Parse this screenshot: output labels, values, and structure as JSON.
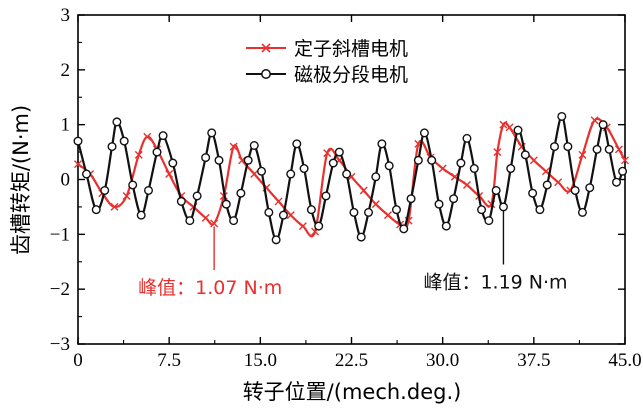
{
  "chart_data": {
    "type": "line",
    "xlabel": "转子位置/(mech.deg.)",
    "ylabel": "齿槽转矩/(N·m)",
    "xlim": [
      0,
      45
    ],
    "ylim": [
      -3,
      3
    ],
    "x_ticks": [
      "0",
      "7.5",
      "15.0",
      "22.5",
      "30.0",
      "37.5",
      "45.0"
    ],
    "y_ticks": [
      "3",
      "2",
      "1",
      "0",
      "−1",
      "−2",
      "−3"
    ],
    "legend_position": "top-center",
    "series": [
      {
        "name": "定子斜槽电机",
        "color": "#e8312f",
        "marker": "x",
        "points": [
          [
            0.0,
            0.28
          ],
          [
            1.0,
            0.1
          ],
          [
            2.0,
            -0.25
          ],
          [
            3.0,
            -0.5
          ],
          [
            4.0,
            -0.3
          ],
          [
            5.0,
            0.45
          ],
          [
            5.7,
            0.78
          ],
          [
            6.5,
            0.55
          ],
          [
            7.5,
            0.1
          ],
          [
            8.5,
            -0.3
          ],
          [
            9.5,
            -0.5
          ],
          [
            10.5,
            -0.7
          ],
          [
            11.2,
            -0.8
          ],
          [
            12.0,
            -0.3
          ],
          [
            12.8,
            0.6
          ],
          [
            13.5,
            0.35
          ],
          [
            14.5,
            0.1
          ],
          [
            15.5,
            -0.15
          ],
          [
            16.5,
            -0.4
          ],
          [
            17.5,
            -0.65
          ],
          [
            18.5,
            -0.85
          ],
          [
            19.5,
            -0.95
          ],
          [
            20.5,
            0.48
          ],
          [
            21.5,
            0.35
          ],
          [
            22.5,
            0.05
          ],
          [
            23.5,
            -0.2
          ],
          [
            24.5,
            -0.45
          ],
          [
            25.5,
            -0.65
          ],
          [
            26.5,
            -0.82
          ],
          [
            27.2,
            -0.75
          ],
          [
            28.0,
            0.65
          ],
          [
            29.0,
            0.4
          ],
          [
            30.0,
            0.2
          ],
          [
            31.0,
            0.05
          ],
          [
            32.0,
            -0.1
          ],
          [
            33.0,
            -0.3
          ],
          [
            34.0,
            -0.45
          ],
          [
            34.5,
            0.5
          ],
          [
            35.0,
            1.0
          ],
          [
            35.5,
            0.95
          ],
          [
            36.5,
            0.6
          ],
          [
            37.5,
            0.35
          ],
          [
            38.5,
            0.15
          ],
          [
            39.5,
            -0.05
          ],
          [
            40.5,
            -0.2
          ],
          [
            41.5,
            0.45
          ],
          [
            42.5,
            1.08
          ],
          [
            43.5,
            0.95
          ],
          [
            44.5,
            0.55
          ],
          [
            45.0,
            0.35
          ]
        ]
      },
      {
        "name": "磁极分段电机",
        "color": "#111111",
        "marker": "o",
        "points": [
          [
            0.0,
            0.7
          ],
          [
            0.7,
            0.1
          ],
          [
            1.5,
            -0.55
          ],
          [
            2.2,
            -0.2
          ],
          [
            2.8,
            0.6
          ],
          [
            3.2,
            1.05
          ],
          [
            3.8,
            0.7
          ],
          [
            4.5,
            -0.1
          ],
          [
            5.2,
            -0.65
          ],
          [
            5.8,
            -0.2
          ],
          [
            6.5,
            0.5
          ],
          [
            7.0,
            0.8
          ],
          [
            7.8,
            0.3
          ],
          [
            8.5,
            -0.4
          ],
          [
            9.2,
            -0.75
          ],
          [
            9.8,
            -0.3
          ],
          [
            10.5,
            0.4
          ],
          [
            11.0,
            0.85
          ],
          [
            11.6,
            0.35
          ],
          [
            12.2,
            -0.45
          ],
          [
            12.8,
            -0.75
          ],
          [
            13.4,
            -0.25
          ],
          [
            14.0,
            0.35
          ],
          [
            14.5,
            0.62
          ],
          [
            15.1,
            0.15
          ],
          [
            15.7,
            -0.6
          ],
          [
            16.3,
            -1.1
          ],
          [
            16.9,
            -0.65
          ],
          [
            17.5,
            0.1
          ],
          [
            18.0,
            0.65
          ],
          [
            18.6,
            0.2
          ],
          [
            19.2,
            -0.55
          ],
          [
            19.8,
            -0.85
          ],
          [
            20.4,
            -0.3
          ],
          [
            21.0,
            0.3
          ],
          [
            21.5,
            0.5
          ],
          [
            22.1,
            0.1
          ],
          [
            22.7,
            -0.6
          ],
          [
            23.3,
            -1.05
          ],
          [
            23.9,
            -0.6
          ],
          [
            24.5,
            0.05
          ],
          [
            25.0,
            0.65
          ],
          [
            25.6,
            0.25
          ],
          [
            26.2,
            -0.55
          ],
          [
            26.8,
            -0.9
          ],
          [
            27.4,
            -0.35
          ],
          [
            28.0,
            0.35
          ],
          [
            28.5,
            0.85
          ],
          [
            29.1,
            0.35
          ],
          [
            29.7,
            -0.45
          ],
          [
            30.3,
            -0.85
          ],
          [
            30.9,
            -0.35
          ],
          [
            31.5,
            0.3
          ],
          [
            32.0,
            0.75
          ],
          [
            32.6,
            0.2
          ],
          [
            33.2,
            -0.55
          ],
          [
            33.8,
            -0.75
          ],
          [
            34.4,
            -0.2
          ],
          [
            35.0,
            -0.5
          ],
          [
            35.6,
            0.2
          ],
          [
            36.2,
            0.9
          ],
          [
            36.8,
            0.45
          ],
          [
            37.4,
            -0.25
          ],
          [
            38.0,
            -0.55
          ],
          [
            38.6,
            -0.1
          ],
          [
            39.2,
            0.6
          ],
          [
            39.8,
            1.15
          ],
          [
            40.3,
            0.6
          ],
          [
            40.9,
            -0.2
          ],
          [
            41.5,
            -0.6
          ],
          [
            42.1,
            -0.15
          ],
          [
            42.7,
            0.55
          ],
          [
            43.2,
            1.0
          ],
          [
            43.7,
            0.55
          ],
          [
            44.3,
            -0.05
          ],
          [
            44.8,
            0.15
          ]
        ]
      }
    ],
    "annotations": [
      {
        "text": "峰值：1.07 N·m",
        "color": "#e8312f",
        "target": [
          11.2,
          -0.8
        ],
        "anchor": [
          11.2,
          -1.65
        ]
      },
      {
        "text": "峰值：1.19 N·m",
        "color": "#111111",
        "target": [
          35.0,
          -0.5
        ],
        "anchor": [
          35.0,
          -1.55
        ]
      }
    ]
  }
}
